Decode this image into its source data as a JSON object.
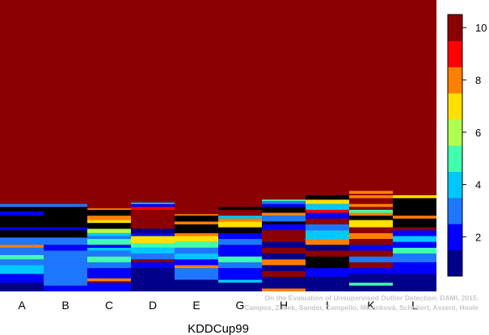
{
  "chart_data": {
    "type": "heatmap",
    "title": "",
    "xlabel": "KDDCup99",
    "ylabel": "",
    "categories": [
      "A",
      "B",
      "C",
      "D",
      "E",
      "G",
      "H",
      "I",
      "K",
      "L"
    ],
    "colorbar": {
      "ticks": [
        2,
        4,
        6,
        8,
        10
      ],
      "range": [
        0.5,
        10.5
      ],
      "colors": [
        "#00008B",
        "#0000FF",
        "#1E78FF",
        "#00C8FF",
        "#40FFB0",
        "#B0FF50",
        "#FFE000",
        "#FF8000",
        "#FF0000",
        "#8B0000"
      ]
    },
    "background_value": 10,
    "columns": [
      {
        "stripes": [
          [
            0,
            0.0,
            0.03
          ],
          [
            1,
            0.03,
            0.06
          ],
          [
            3,
            0.06,
            0.09
          ],
          [
            2,
            0.09,
            0.11
          ],
          [
            4,
            0.11,
            0.125
          ],
          [
            2,
            0.125,
            0.15
          ],
          [
            7,
            0.15,
            0.16
          ],
          [
            2,
            0.16,
            0.185
          ],
          [
            10,
            0.185,
            0.21
          ],
          [
            1,
            0.21,
            0.22
          ],
          [
            10,
            0.22,
            0.26
          ],
          [
            1,
            0.26,
            0.275
          ],
          [
            10,
            0.275,
            0.29
          ],
          [
            2,
            0.29,
            0.3
          ]
        ]
      },
      {
        "stripes": [
          [
            1,
            0.0,
            0.02
          ],
          [
            2,
            0.02,
            0.1
          ],
          [
            2,
            0.1,
            0.14
          ],
          [
            1,
            0.14,
            0.16
          ],
          [
            2,
            0.16,
            0.185
          ],
          [
            10,
            0.185,
            0.21
          ],
          [
            1,
            0.21,
            0.22
          ],
          [
            10,
            0.22,
            0.29
          ],
          [
            2,
            0.29,
            0.3
          ],
          [
            9,
            0.375,
            0.38
          ]
        ]
      },
      {
        "stripes": [
          [
            1,
            0.0,
            0.03
          ],
          [
            7,
            0.035,
            0.045
          ],
          [
            1,
            0.045,
            0.08
          ],
          [
            2,
            0.08,
            0.1
          ],
          [
            4,
            0.1,
            0.12
          ],
          [
            2,
            0.12,
            0.14
          ],
          [
            3,
            0.14,
            0.15
          ],
          [
            1,
            0.15,
            0.16
          ],
          [
            4,
            0.16,
            0.18
          ],
          [
            2,
            0.18,
            0.19
          ],
          [
            3,
            0.19,
            0.2
          ],
          [
            5,
            0.2,
            0.215
          ],
          [
            10,
            0.215,
            0.235
          ],
          [
            6,
            0.235,
            0.245
          ],
          [
            7,
            0.245,
            0.26
          ],
          [
            10,
            0.26,
            0.28
          ],
          [
            7,
            0.28,
            0.285
          ],
          [
            9,
            0.335,
            0.34
          ]
        ]
      },
      {
        "stripes": [
          [
            0,
            0.0,
            0.08
          ],
          [
            1,
            0.08,
            0.1
          ],
          [
            9,
            0.1,
            0.11
          ],
          [
            2,
            0.11,
            0.13
          ],
          [
            3,
            0.13,
            0.15
          ],
          [
            4,
            0.15,
            0.165
          ],
          [
            6,
            0.165,
            0.19
          ],
          [
            1,
            0.19,
            0.2
          ],
          [
            0,
            0.2,
            0.215
          ],
          [
            9,
            0.27,
            0.28
          ],
          [
            8,
            0.28,
            0.29
          ],
          [
            1,
            0.29,
            0.3
          ],
          [
            3,
            0.3,
            0.305
          ]
        ]
      },
      {
        "stripes": [
          [
            0,
            0.0,
            0.04
          ],
          [
            2,
            0.04,
            0.08
          ],
          [
            7,
            0.08,
            0.09
          ],
          [
            1,
            0.09,
            0.11
          ],
          [
            3,
            0.11,
            0.13
          ],
          [
            2,
            0.13,
            0.15
          ],
          [
            4,
            0.15,
            0.17
          ],
          [
            6,
            0.17,
            0.19
          ],
          [
            7,
            0.19,
            0.2
          ],
          [
            10,
            0.2,
            0.23
          ],
          [
            7,
            0.23,
            0.24
          ],
          [
            10,
            0.24,
            0.26
          ],
          [
            7,
            0.26,
            0.265
          ],
          [
            9,
            0.335,
            0.34
          ]
        ]
      },
      {
        "stripes": [
          [
            0,
            0.0,
            0.03
          ],
          [
            3,
            0.03,
            0.04
          ],
          [
            1,
            0.04,
            0.08
          ],
          [
            2,
            0.08,
            0.1
          ],
          [
            4,
            0.1,
            0.12
          ],
          [
            1,
            0.12,
            0.16
          ],
          [
            2,
            0.16,
            0.18
          ],
          [
            1,
            0.18,
            0.2
          ],
          [
            10,
            0.2,
            0.22
          ],
          [
            6,
            0.22,
            0.24
          ],
          [
            7,
            0.24,
            0.25
          ],
          [
            3,
            0.25,
            0.26
          ],
          [
            9,
            0.26,
            0.28
          ],
          [
            10,
            0.28,
            0.29
          ],
          [
            9,
            0.29,
            0.3
          ],
          [
            9,
            0.37,
            0.375
          ]
        ]
      },
      {
        "stripes": [
          [
            7,
            0.0,
            0.01
          ],
          [
            0,
            0.01,
            0.05
          ],
          [
            9,
            0.05,
            0.07
          ],
          [
            0,
            0.07,
            0.09
          ],
          [
            7,
            0.09,
            0.1
          ],
          [
            7,
            0.1,
            0.11
          ],
          [
            0,
            0.11,
            0.13
          ],
          [
            9,
            0.13,
            0.15
          ],
          [
            0,
            0.15,
            0.17
          ],
          [
            9,
            0.17,
            0.19
          ],
          [
            9,
            0.19,
            0.21
          ],
          [
            1,
            0.21,
            0.23
          ],
          [
            10,
            0.23,
            0.24
          ],
          [
            2,
            0.24,
            0.26
          ],
          [
            7,
            0.26,
            0.27
          ],
          [
            10,
            0.27,
            0.29
          ],
          [
            1,
            0.29,
            0.3
          ],
          [
            2,
            0.3,
            0.31
          ],
          [
            4,
            0.31,
            0.315
          ]
        ]
      },
      {
        "stripes": [
          [
            0,
            0.0,
            0.05
          ],
          [
            1,
            0.05,
            0.08
          ],
          [
            10,
            0.08,
            0.12
          ],
          [
            9,
            0.12,
            0.14
          ],
          [
            0,
            0.14,
            0.16
          ],
          [
            7,
            0.16,
            0.18
          ],
          [
            3,
            0.18,
            0.21
          ],
          [
            2,
            0.21,
            0.23
          ],
          [
            9,
            0.23,
            0.25
          ],
          [
            1,
            0.25,
            0.27
          ],
          [
            8,
            0.27,
            0.28
          ],
          [
            3,
            0.28,
            0.3
          ],
          [
            6,
            0.3,
            0.315
          ],
          [
            10,
            0.315,
            0.33
          ],
          [
            9,
            0.345,
            0.35
          ]
        ]
      },
      {
        "stripes": [
          [
            0,
            0.0,
            0.02
          ],
          [
            4,
            0.02,
            0.03
          ],
          [
            0,
            0.03,
            0.06
          ],
          [
            1,
            0.06,
            0.08
          ],
          [
            9,
            0.08,
            0.1
          ],
          [
            2,
            0.1,
            0.12
          ],
          [
            9,
            0.12,
            0.14
          ],
          [
            1,
            0.14,
            0.16
          ],
          [
            9,
            0.16,
            0.18
          ],
          [
            7,
            0.18,
            0.2
          ],
          [
            9,
            0.2,
            0.22
          ],
          [
            6,
            0.22,
            0.245
          ],
          [
            10,
            0.245,
            0.26
          ],
          [
            7,
            0.26,
            0.27
          ],
          [
            4,
            0.27,
            0.28
          ],
          [
            7,
            0.29,
            0.3
          ],
          [
            9,
            0.31,
            0.315
          ],
          [
            7,
            0.32,
            0.33
          ],
          [
            7,
            0.335,
            0.345
          ],
          [
            9,
            0.35,
            0.355
          ]
        ]
      },
      {
        "stripes": [
          [
            0,
            0.0,
            0.06
          ],
          [
            1,
            0.06,
            0.1
          ],
          [
            2,
            0.1,
            0.13
          ],
          [
            4,
            0.13,
            0.15
          ],
          [
            1,
            0.15,
            0.17
          ],
          [
            3,
            0.17,
            0.19
          ],
          [
            1,
            0.19,
            0.21
          ],
          [
            9,
            0.21,
            0.22
          ],
          [
            10,
            0.22,
            0.25
          ],
          [
            7,
            0.25,
            0.26
          ],
          [
            10,
            0.26,
            0.32
          ],
          [
            6,
            0.32,
            0.33
          ]
        ]
      }
    ]
  },
  "footer": {
    "credit_line1": "On the Evaluation of Unsupervised Outlier Detection, DAMI, 2015.",
    "credit_line2": "Campos, Zimek, Sander, Campello, Micenková, Schubert, Assent, Houle"
  }
}
